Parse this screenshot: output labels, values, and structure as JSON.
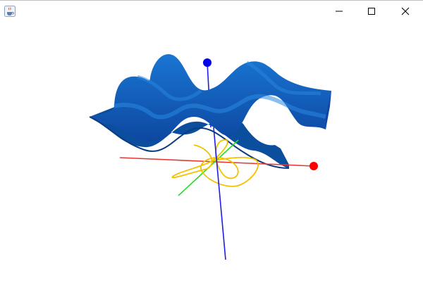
{
  "window": {
    "title": "",
    "icon": "java-cup-icon",
    "controls": {
      "minimize_icon": "minimize-icon",
      "maximize_icon": "maximize-icon",
      "close_icon": "close-icon"
    }
  },
  "scene": {
    "surface_color": "#1565c0",
    "surface_shadow_color": "#0d47a1",
    "x_axis_color": "#e53935",
    "y_axis_color": "#1e1ee6",
    "z_axis_color": "#22dd22",
    "curve_color": "#f2c200"
  }
}
